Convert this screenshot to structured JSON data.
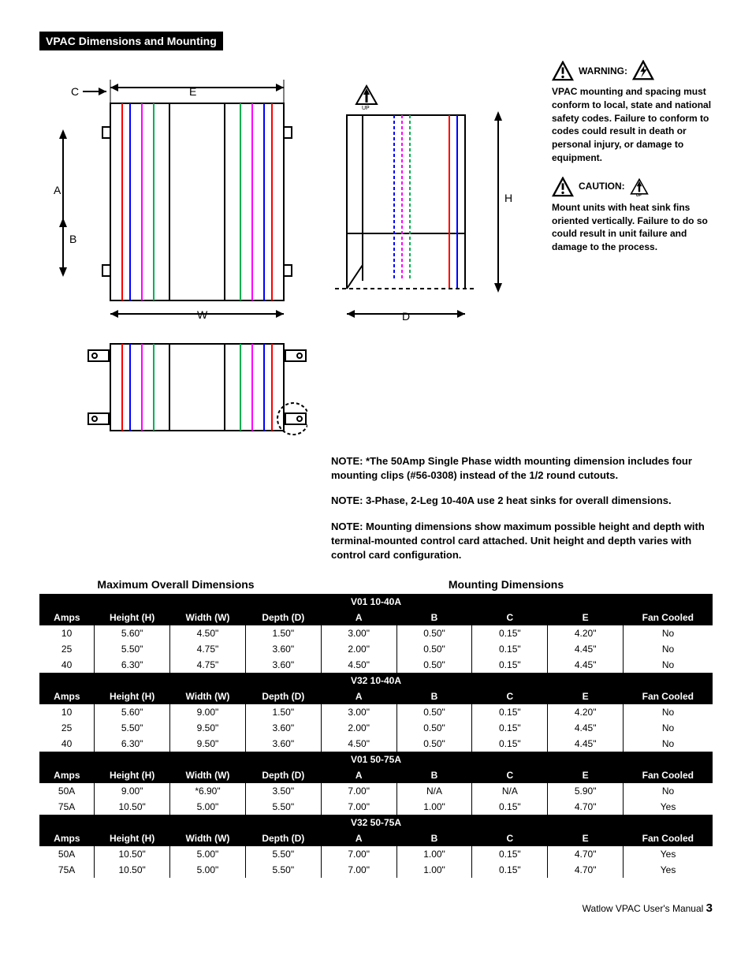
{
  "section_title": "VPAC Dimensions and Mounting",
  "diagram_labels": {
    "A": "A",
    "B": "B",
    "C": "C",
    "D": "D",
    "E": "E",
    "H": "H",
    "W": "W",
    "UP": "UP"
  },
  "warnings": {
    "warning_label": "WARNING:",
    "warning_text": "VPAC mounting and spacing must conform to local, state and national safety codes.  Failure to conform to codes could result in death or personal injury, or damage to equipment.",
    "caution_label": "CAUTION:",
    "caution_text": "Mount units with heat sink fins oriented vertically.   Failure to do so could result in unit failure and damage to the process."
  },
  "notes": {
    "n1": "NOTE:  *The 50Amp Single Phase width mounting dimension includes four mounting clips (#56-0308) instead of the 1/2 round cutouts.",
    "n2": "NOTE:  3-Phase, 2-Leg 10-40A use 2 heat sinks for overall dimensions.",
    "n3": "NOTE:  Mounting dimensions show maximum possible height and depth with terminal-mounted control card attached.  Unit height and depth varies with control card configuration."
  },
  "table": {
    "left_header": "Maximum Overall Dimensions",
    "right_header": "Mounting Dimensions",
    "col_labels": {
      "amps": "Amps",
      "h": "Height (H)",
      "w": "Width (W)",
      "d": "Depth (D)",
      "a": "A",
      "b": "B",
      "c": "C",
      "e": "E",
      "fan": "Fan Cooled"
    },
    "sections": [
      {
        "title": "V01 10-40A",
        "rows": [
          {
            "amps": "10",
            "h": "5.60\"",
            "w": "4.50\"",
            "d": "1.50\"",
            "a": "3.00\"",
            "b": "0.50\"",
            "c": "0.15\"",
            "e": "4.20\"",
            "fan": "No"
          },
          {
            "amps": "25",
            "h": "5.50\"",
            "w": "4.75\"",
            "d": "3.60\"",
            "a": "2.00\"",
            "b": "0.50\"",
            "c": "0.15\"",
            "e": "4.45\"",
            "fan": "No"
          },
          {
            "amps": "40",
            "h": "6.30\"",
            "w": "4.75\"",
            "d": "3.60\"",
            "a": "4.50\"",
            "b": "0.50\"",
            "c": "0.15\"",
            "e": "4.45\"",
            "fan": "No"
          }
        ]
      },
      {
        "title": "V32 10-40A",
        "rows": [
          {
            "amps": "10",
            "h": "5.60\"",
            "w": "9.00\"",
            "d": "1.50\"",
            "a": "3.00\"",
            "b": "0.50\"",
            "c": "0.15\"",
            "e": "4.20\"",
            "fan": "No"
          },
          {
            "amps": "25",
            "h": "5.50\"",
            "w": "9.50\"",
            "d": "3.60\"",
            "a": "2.00\"",
            "b": "0.50\"",
            "c": "0.15\"",
            "e": "4.45\"",
            "fan": "No"
          },
          {
            "amps": "40",
            "h": "6.30\"",
            "w": "9.50\"",
            "d": "3.60\"",
            "a": "4.50\"",
            "b": "0.50\"",
            "c": "0.15\"",
            "e": "4.45\"",
            "fan": "No"
          }
        ]
      },
      {
        "title": "V01 50-75A",
        "rows": [
          {
            "amps": "50A",
            "h": "9.00\"",
            "w": "*6.90\"",
            "d": "3.50\"",
            "a": "7.00\"",
            "b": "N/A",
            "c": "N/A",
            "e": "5.90\"",
            "fan": "No"
          },
          {
            "amps": "75A",
            "h": "10.50\"",
            "w": "5.00\"",
            "d": "5.50\"",
            "a": "7.00\"",
            "b": "1.00\"",
            "c": "0.15\"",
            "e": "4.70\"",
            "fan": "Yes"
          }
        ]
      },
      {
        "title": "V32 50-75A",
        "rows": [
          {
            "amps": "50A",
            "h": "10.50\"",
            "w": "5.00\"",
            "d": "5.50\"",
            "a": "7.00\"",
            "b": "1.00\"",
            "c": "0.15\"",
            "e": "4.70\"",
            "fan": "Yes"
          },
          {
            "amps": "75A",
            "h": "10.50\"",
            "w": "5.00\"",
            "d": "5.50\"",
            "a": "7.00\"",
            "b": "1.00\"",
            "c": "0.15\"",
            "e": "4.70\"",
            "fan": "Yes"
          }
        ]
      }
    ]
  },
  "diagram_styling": {
    "colors": {
      "black": "#000000",
      "red": "#ff0000",
      "blue": "#0000ff",
      "green": "#00b050",
      "magenta": "#ff00ff",
      "cyan": "#00ffff"
    },
    "stroke_width_main": 2,
    "stroke_width_dim": 1.5,
    "figure_background": "#ffffff"
  },
  "footer": {
    "text": "Watlow VPAC User's Manual",
    "page": "3"
  }
}
